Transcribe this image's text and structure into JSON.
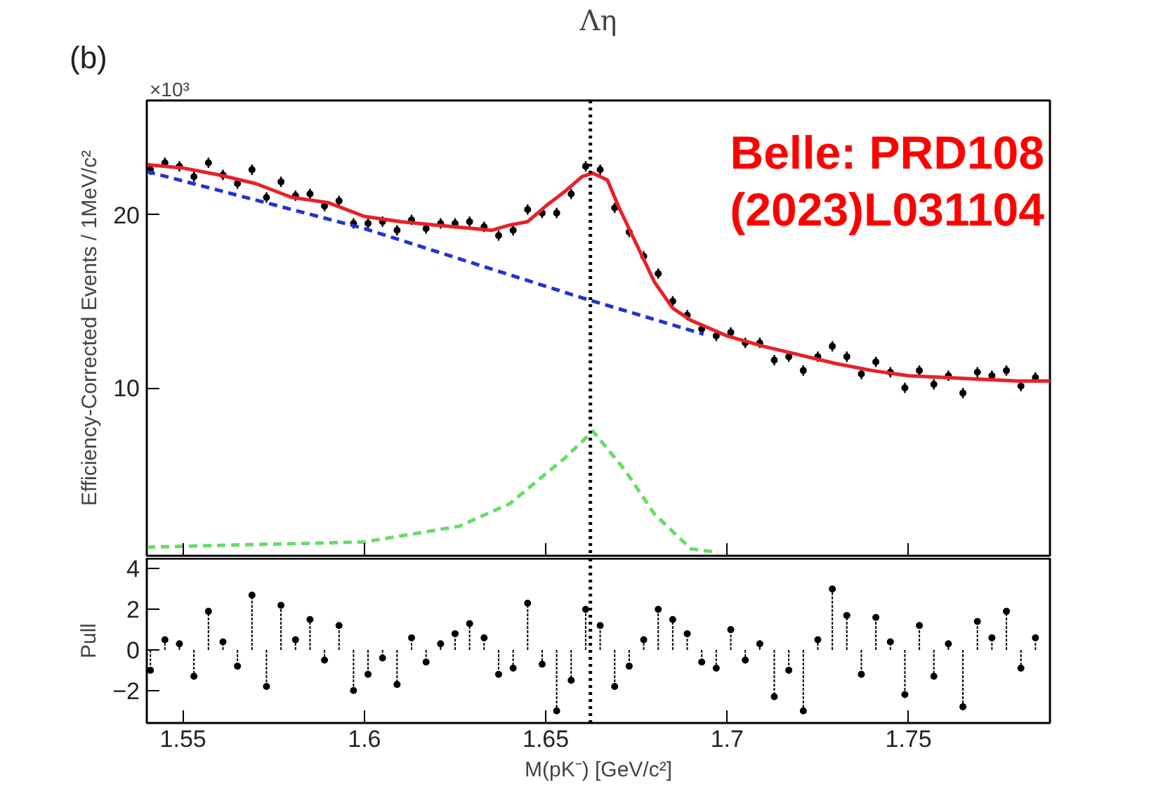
{
  "chart_data": [
    {
      "type": "scatter",
      "title": "Λη",
      "ylabel": "Efficiency-Corrected Events / 1MeV/c²",
      "xlim": [
        1.54,
        1.789
      ],
      "xticks": [
        1.55,
        1.6,
        1.65,
        1.7,
        1.75
      ],
      "ylim": [
        0.3,
        26.6
      ],
      "yticks": [
        10,
        20
      ],
      "tick_labels": "y",
      "grid": false,
      "annotations": [
        "(b)",
        "×10³",
        "Belle: PRD108 (2023)L031104"
      ],
      "ref_lines": [
        {
          "axis": "x",
          "value": 1.6623,
          "label": null,
          "color": "#000000",
          "line_style": "dotted"
        }
      ],
      "series": [
        {
          "type": "scatter",
          "color": "#000000",
          "marker": "circle",
          "x": [
            1.541,
            1.545,
            1.549,
            1.553,
            1.557,
            1.561,
            1.565,
            1.569,
            1.573,
            1.577,
            1.581,
            1.585,
            1.589,
            1.593,
            1.597,
            1.601,
            1.605,
            1.609,
            1.613,
            1.617,
            1.621,
            1.625,
            1.629,
            1.633,
            1.637,
            1.641,
            1.645,
            1.649,
            1.653,
            1.657,
            1.661,
            1.665,
            1.669,
            1.673,
            1.677,
            1.681,
            1.685,
            1.689,
            1.693,
            1.697,
            1.701,
            1.705,
            1.709,
            1.713,
            1.717,
            1.721,
            1.725,
            1.729,
            1.733,
            1.737,
            1.741,
            1.745,
            1.749,
            1.753,
            1.757,
            1.761,
            1.765,
            1.769,
            1.773,
            1.777,
            1.781,
            1.785
          ],
          "values": [
            22.6,
            23.0,
            22.8,
            22.2,
            23.0,
            22.3,
            21.8,
            22.6,
            21.0,
            21.9,
            21.1,
            21.2,
            20.5,
            20.8,
            19.5,
            19.5,
            19.6,
            19.1,
            19.7,
            19.2,
            19.5,
            19.5,
            19.6,
            19.3,
            18.8,
            19.1,
            20.3,
            20.1,
            20.1,
            21.2,
            22.8,
            22.6,
            20.4,
            19.0,
            17.6,
            16.6,
            15.0,
            14.2,
            13.4,
            13.0,
            13.2,
            12.6,
            12.6,
            11.6,
            11.8,
            11.0,
            11.8,
            12.4,
            11.8,
            10.8,
            11.5,
            10.9,
            10.0,
            11.0,
            10.2,
            10.7,
            9.7,
            10.9,
            10.7,
            11.0,
            10.1,
            10.6
          ],
          "errors": [
            0.3,
            0.3,
            0.3,
            0.3,
            0.3,
            0.3,
            0.3,
            0.3,
            0.3,
            0.3,
            0.3,
            0.3,
            0.3,
            0.3,
            0.3,
            0.3,
            0.3,
            0.3,
            0.3,
            0.3,
            0.3,
            0.3,
            0.3,
            0.3,
            0.3,
            0.3,
            0.3,
            0.3,
            0.3,
            0.3,
            0.3,
            0.3,
            0.3,
            0.3,
            0.3,
            0.3,
            0.3,
            0.3,
            0.3,
            0.3,
            0.3,
            0.3,
            0.3,
            0.3,
            0.3,
            0.3,
            0.3,
            0.3,
            0.3,
            0.3,
            0.3,
            0.3,
            0.3,
            0.3,
            0.3,
            0.3,
            0.3,
            0.3,
            0.3,
            0.3,
            0.3,
            0.3
          ]
        },
        {
          "type": "line",
          "color": "#e8202a",
          "line_style": "solid",
          "marker": "none",
          "x": [
            1.54,
            1.55,
            1.56,
            1.57,
            1.58,
            1.59,
            1.6,
            1.61,
            1.62,
            1.63,
            1.635,
            1.64,
            1.645,
            1.65,
            1.655,
            1.66,
            1.663,
            1.667,
            1.67,
            1.675,
            1.68,
            1.685,
            1.69,
            1.7,
            1.71,
            1.72,
            1.73,
            1.74,
            1.75,
            1.76,
            1.77,
            1.78,
            1.789
          ],
          "values": [
            22.9,
            22.7,
            22.3,
            21.8,
            21.0,
            20.7,
            19.9,
            19.6,
            19.4,
            19.2,
            19.1,
            19.4,
            19.6,
            20.5,
            21.3,
            22.2,
            22.4,
            22.0,
            20.5,
            18.3,
            16.1,
            14.6,
            13.9,
            13.0,
            12.4,
            11.9,
            11.4,
            11.0,
            10.7,
            10.6,
            10.5,
            10.4,
            10.4
          ]
        },
        {
          "type": "line",
          "color": "#2233cc",
          "line_style": "dashed",
          "marker": "none",
          "x": [
            1.54,
            1.6,
            1.66,
            1.6935
          ],
          "values": [
            22.5,
            19.2,
            15.2,
            13.1
          ]
        },
        {
          "type": "line",
          "color": "#66dd66",
          "line_style": "dashed",
          "marker": "none",
          "x": [
            1.54,
            1.6,
            1.626,
            1.64,
            1.655,
            1.663,
            1.672,
            1.68,
            1.69,
            1.6975
          ],
          "values": [
            0.8,
            1.1,
            2.0,
            3.3,
            5.9,
            7.5,
            5.2,
            2.7,
            0.7,
            0.5
          ]
        }
      ]
    },
    {
      "type": "lollipop",
      "xlabel": "M(pK⁻) [GeV/c²]",
      "ylabel": "Pull",
      "xlim": [
        1.54,
        1.789
      ],
      "xticks": [
        1.55,
        1.6,
        1.65,
        1.7,
        1.75
      ],
      "ylim": [
        -3.6,
        4.5
      ],
      "yticks": [
        {
          "value": -2,
          "label": "−2"
        },
        0,
        2,
        4
      ],
      "grid": false,
      "marker": "circle",
      "ref_lines": [
        {
          "axis": "x",
          "value": 1.6623,
          "label": null,
          "color": "#000000",
          "line_style": "dotted"
        }
      ],
      "series": [
        {
          "color": "#000000",
          "x": [
            1.541,
            1.545,
            1.549,
            1.553,
            1.557,
            1.561,
            1.565,
            1.569,
            1.573,
            1.577,
            1.581,
            1.585,
            1.589,
            1.593,
            1.597,
            1.601,
            1.605,
            1.609,
            1.613,
            1.617,
            1.621,
            1.625,
            1.629,
            1.633,
            1.637,
            1.641,
            1.645,
            1.649,
            1.653,
            1.657,
            1.661,
            1.665,
            1.669,
            1.673,
            1.677,
            1.681,
            1.685,
            1.689,
            1.693,
            1.697,
            1.701,
            1.705,
            1.709,
            1.713,
            1.717,
            1.721,
            1.725,
            1.729,
            1.733,
            1.737,
            1.741,
            1.745,
            1.749,
            1.753,
            1.757,
            1.761,
            1.765,
            1.769,
            1.773,
            1.777,
            1.781,
            1.785
          ],
          "values": [
            -1.0,
            0.5,
            0.3,
            -1.3,
            1.9,
            0.4,
            -0.8,
            2.7,
            -1.8,
            2.2,
            0.5,
            1.5,
            -0.5,
            1.2,
            -2.0,
            -1.2,
            -0.4,
            -1.7,
            0.6,
            -0.6,
            0.3,
            0.8,
            1.3,
            0.6,
            -1.2,
            -0.9,
            2.3,
            -0.7,
            -3.0,
            -1.5,
            2.0,
            1.2,
            -1.8,
            -0.8,
            0.5,
            2.0,
            1.5,
            0.8,
            -0.6,
            -0.9,
            1.0,
            -0.5,
            0.3,
            -2.3,
            -1.0,
            -3.0,
            0.5,
            3.0,
            1.7,
            -1.2,
            1.6,
            0.4,
            -2.2,
            1.2,
            -1.3,
            0.3,
            -2.8,
            1.4,
            0.6,
            1.9,
            -0.9,
            0.6
          ]
        }
      ]
    }
  ]
}
